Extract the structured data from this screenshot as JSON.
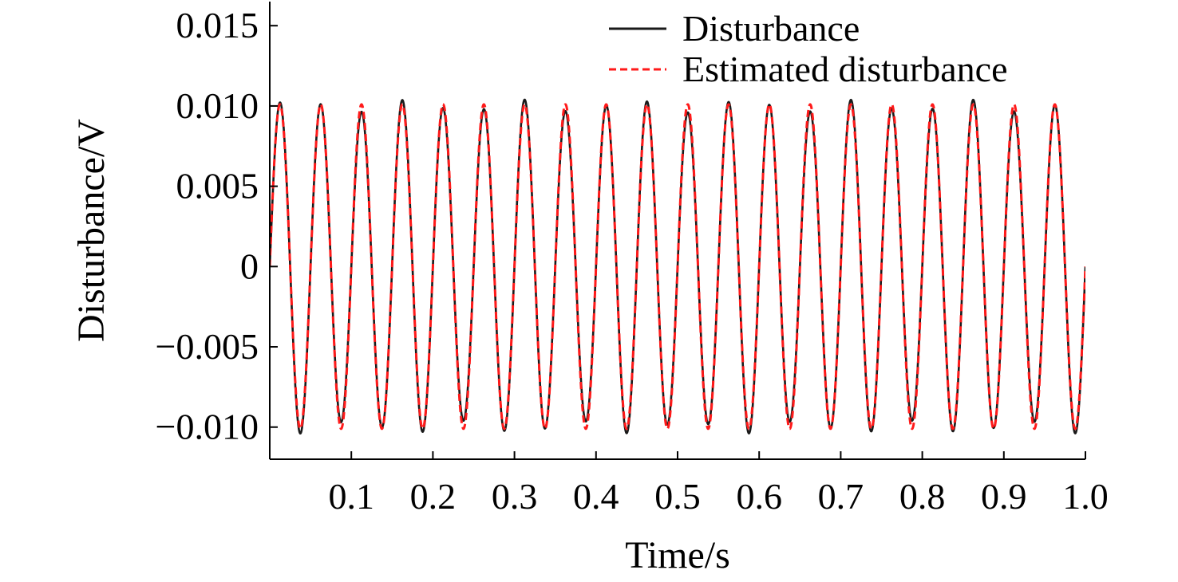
{
  "chart_data": {
    "type": "line",
    "title": "",
    "xlabel": "Time/s",
    "ylabel": "Disturbance/V",
    "xlim": [
      0,
      1.0
    ],
    "ylim": [
      -0.012,
      0.0165
    ],
    "xticks": [
      {
        "value": 0.1,
        "label": "0.1"
      },
      {
        "value": 0.2,
        "label": "0.2"
      },
      {
        "value": 0.3,
        "label": "0.3"
      },
      {
        "value": 0.4,
        "label": "0.4"
      },
      {
        "value": 0.5,
        "label": "0.5"
      },
      {
        "value": 0.6,
        "label": "0.6"
      },
      {
        "value": 0.7,
        "label": "0.7"
      },
      {
        "value": 0.8,
        "label": "0.8"
      },
      {
        "value": 0.9,
        "label": "0.9"
      },
      {
        "value": 1.0,
        "label": "1.0"
      }
    ],
    "yticks": [
      {
        "value": 0.015,
        "label": "0.015"
      },
      {
        "value": 0.01,
        "label": "0.010"
      },
      {
        "value": 0.005,
        "label": "0.005"
      },
      {
        "value": 0,
        "label": "0"
      },
      {
        "value": -0.005,
        "label": "−0.005"
      },
      {
        "value": -0.01,
        "label": "−0.010"
      }
    ],
    "grid": false,
    "legend_position": "top-right",
    "series": [
      {
        "name": "Disturbance",
        "color": "#1a1a1a",
        "style": "solid",
        "function": "sine",
        "amplitude": 0.01,
        "frequency_hz": 20,
        "phase": 0,
        "x": [
          0,
          0.0125,
          0.025,
          0.0375,
          0.05,
          0.0625,
          0.075,
          0.0875,
          0.1,
          0.25,
          0.5,
          0.75,
          1.0
        ],
        "y": [
          0,
          0.01,
          0,
          -0.01,
          0,
          0.01,
          0,
          -0.01,
          0,
          0,
          0,
          0,
          0
        ]
      },
      {
        "name": "Estimated disturbance",
        "color": "#ff1a1a",
        "style": "dashed",
        "function": "sine",
        "amplitude": 0.0101,
        "frequency_hz": 20,
        "phase": 0,
        "x": [
          0,
          0.0125,
          0.025,
          0.0375,
          0.05,
          0.0625,
          0.075,
          0.0875,
          0.1,
          0.25,
          0.5,
          0.75,
          1.0
        ],
        "y": [
          0,
          0.0101,
          0,
          -0.0101,
          0,
          0.0101,
          0,
          -0.0101,
          0,
          0,
          0,
          0,
          0
        ]
      }
    ]
  }
}
